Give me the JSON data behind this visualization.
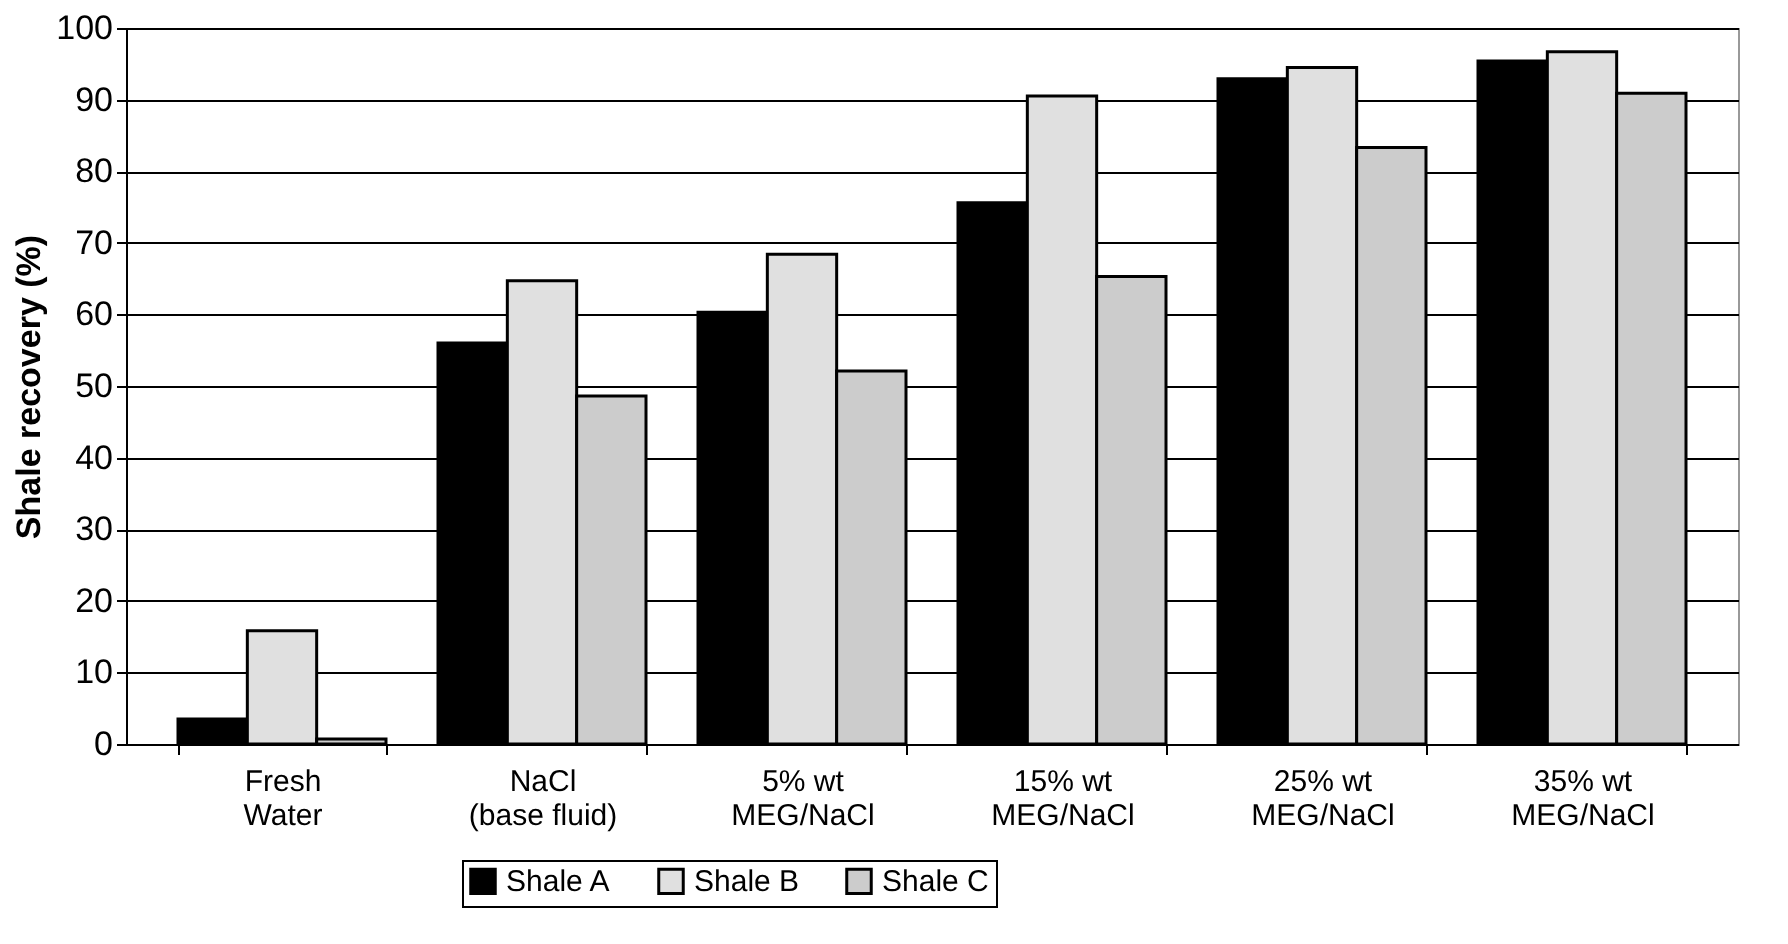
{
  "chart_data": {
    "type": "bar",
    "ylabel": "Shale recovery (%)",
    "categories": [
      "Fresh\nWater",
      "NaCl\n(base fluid)",
      "5% wt\nMEG/NaCl",
      "15% wt\nMEG/NaCl",
      "25% wt\nMEG/NaCl",
      "35% wt\nMEG/NaCl"
    ],
    "series": [
      {
        "name": "Shale A",
        "color": "#000000",
        "values": [
          3.5,
          56.0,
          60.3,
          75.6,
          92.9,
          95.4
        ]
      },
      {
        "name": "Shale B",
        "color": "#e0e0e0",
        "values": [
          15.8,
          64.7,
          68.4,
          90.5,
          94.5,
          96.7
        ]
      },
      {
        "name": "Shale C",
        "color": "#cccccc",
        "values": [
          0.7,
          48.6,
          52.1,
          65.3,
          83.3,
          90.9
        ]
      }
    ],
    "ylim": [
      0,
      100
    ],
    "yticks": [
      0,
      10,
      20,
      30,
      40,
      50,
      60,
      70,
      80,
      90,
      100
    ],
    "grid": "y",
    "legend": "bottom"
  }
}
